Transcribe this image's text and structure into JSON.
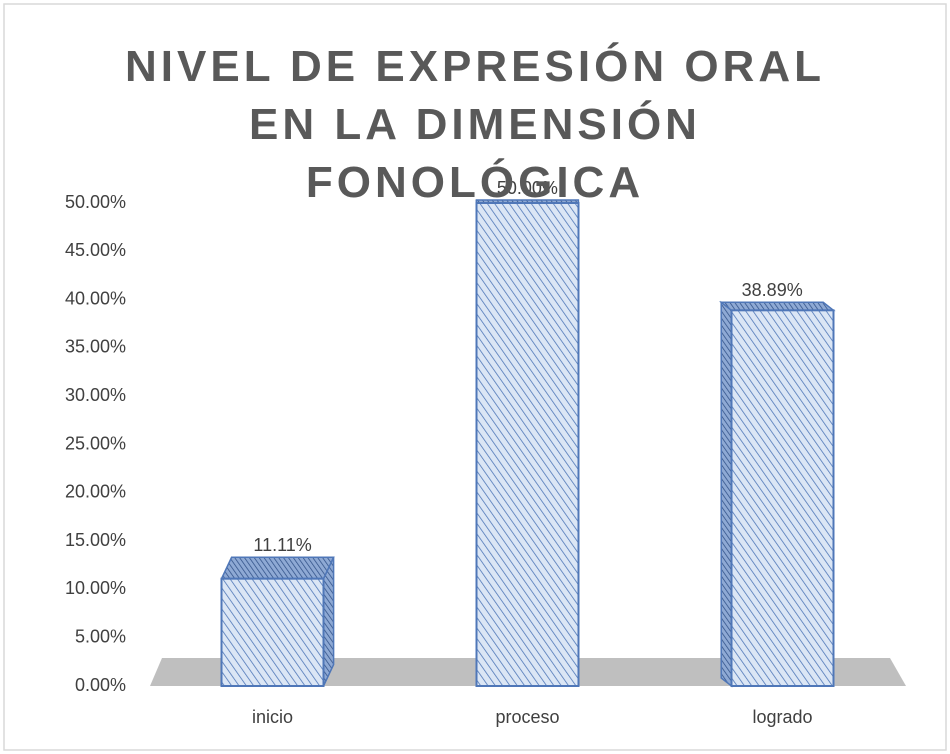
{
  "chart_data": {
    "type": "bar",
    "title": "NIVEL DE EXPRESIÓN ORAL EN LA DIMENSIÓN FONOLÓGICA",
    "categories": [
      "inicio",
      "proceso",
      "logrado"
    ],
    "values": [
      11.11,
      50,
      38.89
    ],
    "value_labels": [
      "11.11%",
      "50.00%",
      "38.89%"
    ],
    "color": "#4f77b8",
    "ylim": [
      0,
      50
    ],
    "yticks": [
      {
        "value": 0,
        "label": "0.00%"
      },
      {
        "value": 5,
        "label": "5.00%"
      },
      {
        "value": 10,
        "label": "10.00%"
      },
      {
        "value": 15,
        "label": "15.00%"
      },
      {
        "value": 20,
        "label": "20.00%"
      },
      {
        "value": 25,
        "label": "25.00%"
      },
      {
        "value": 30,
        "label": "30.00%"
      },
      {
        "value": 35,
        "label": "35.00%"
      },
      {
        "value": 40,
        "label": "40.00%"
      },
      {
        "value": 45,
        "label": "45.00%"
      },
      {
        "value": 50,
        "label": "50.00%"
      }
    ],
    "grid": false
  }
}
